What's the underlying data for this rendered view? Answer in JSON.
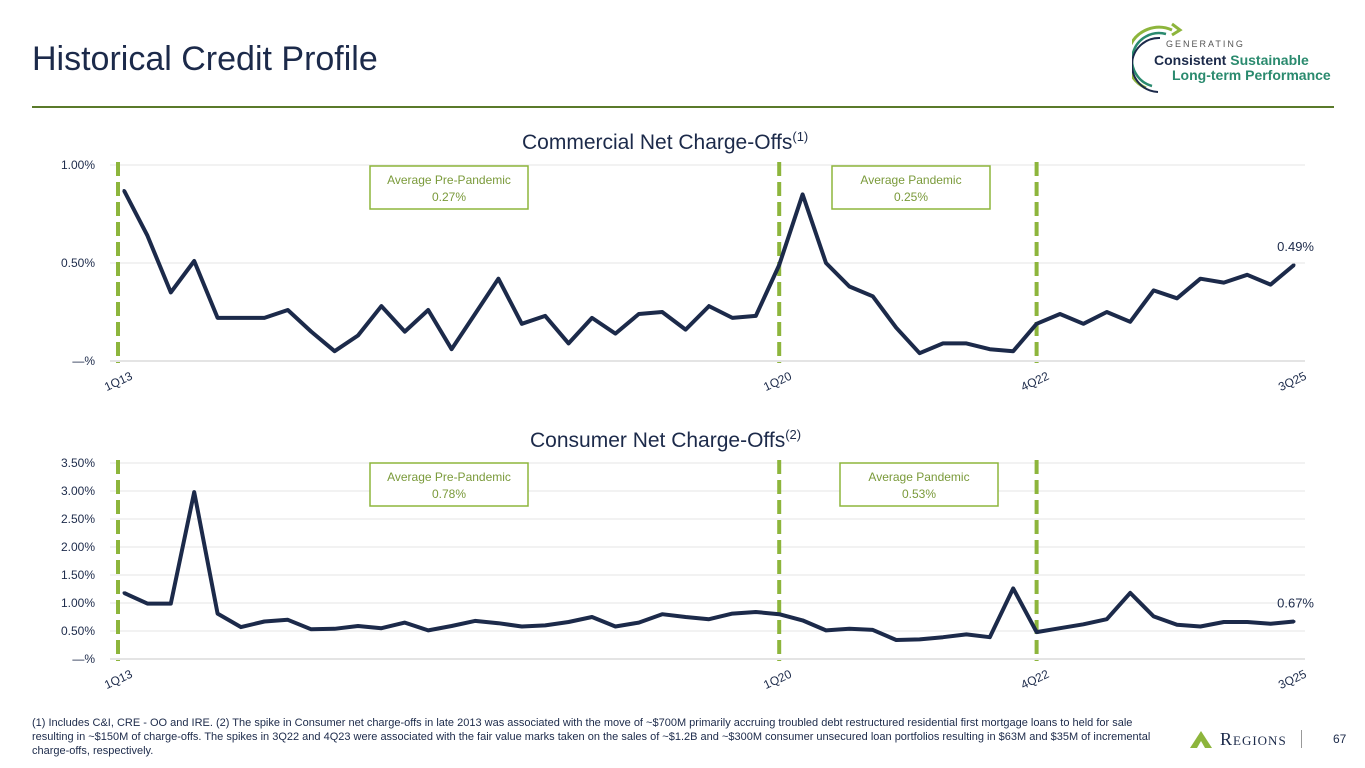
{
  "page": {
    "title": "Historical Credit Profile",
    "page_number": "67",
    "footnote": "(1) Includes C&I, CRE - OO and IRE.  (2) The spike in Consumer net charge-offs in late 2013 was associated with the move of ~$700M primarily accruing troubled debt restructured residential first mortgage loans to held for sale resulting in ~$150M of charge-offs. The spikes in 3Q22 and 4Q23 were associated with the fair value marks taken on the sales of ~$1.2B and ~$300M consumer unsecured loan portfolios resulting in $63M and $35M of incremental charge-offs, respectively."
  },
  "logo": {
    "line0": "GENERATING",
    "line1a": "Consistent",
    "line1b": "Sustainable",
    "line2": "Long-term Performance"
  },
  "brand": {
    "name": "Regions"
  },
  "colors": {
    "line": "#1c2a4a",
    "marker": "#8db53c",
    "grid": "#e6e6e6",
    "text": "#1c2a4a"
  },
  "chart_data": [
    {
      "type": "line",
      "title": "Commercial Net Charge-Offs",
      "title_sup": "(1)",
      "ylim": [
        0,
        1.0
      ],
      "y_ticks": [
        0,
        0.5,
        1.0
      ],
      "y_tick_labels": [
        "—%",
        "0.50%",
        "1.00%"
      ],
      "x_tick_labels": [
        {
          "index": 0,
          "label": "1Q13"
        },
        {
          "index": 28,
          "label": "1Q20"
        },
        {
          "index": 39,
          "label": "4Q22"
        },
        {
          "index": 50,
          "label": "3Q25"
        }
      ],
      "values": [
        0.87,
        0.64,
        0.35,
        0.51,
        0.22,
        0.22,
        0.22,
        0.26,
        0.15,
        0.05,
        0.13,
        0.28,
        0.15,
        0.26,
        0.06,
        0.24,
        0.42,
        0.19,
        0.23,
        0.09,
        0.22,
        0.14,
        0.24,
        0.25,
        0.16,
        0.28,
        0.22,
        0.23,
        0.49,
        0.85,
        0.5,
        0.38,
        0.33,
        0.17,
        0.04,
        0.09,
        0.09,
        0.06,
        0.05,
        0.19,
        0.24,
        0.19,
        0.25,
        0.2,
        0.36,
        0.32,
        0.42,
        0.4,
        0.44,
        0.39,
        0.49
      ],
      "vlines": [
        0,
        28,
        39
      ],
      "last_label": "0.49%",
      "annotations": [
        {
          "label": "Average Pre-Pandemic",
          "value": "0.27%"
        },
        {
          "label": "Average Pandemic",
          "value": "0.25%"
        }
      ]
    },
    {
      "type": "line",
      "title": "Consumer Net Charge-Offs",
      "title_sup": "(2)",
      "ylim": [
        0,
        3.5
      ],
      "y_ticks": [
        0,
        0.5,
        1.0,
        1.5,
        2.0,
        2.5,
        3.0,
        3.5
      ],
      "y_tick_labels": [
        "—%",
        "0.50%",
        "1.00%",
        "1.50%",
        "2.00%",
        "2.50%",
        "3.00%",
        "3.50%"
      ],
      "x_tick_labels": [
        {
          "index": 0,
          "label": "1Q13"
        },
        {
          "index": 28,
          "label": "1Q20"
        },
        {
          "index": 39,
          "label": "4Q22"
        },
        {
          "index": 50,
          "label": "3Q25"
        }
      ],
      "values": [
        1.18,
        0.99,
        0.99,
        2.98,
        0.81,
        0.57,
        0.67,
        0.7,
        0.53,
        0.54,
        0.59,
        0.55,
        0.65,
        0.51,
        0.59,
        0.68,
        0.64,
        0.58,
        0.6,
        0.66,
        0.75,
        0.58,
        0.65,
        0.8,
        0.75,
        0.71,
        0.81,
        0.84,
        0.8,
        0.69,
        0.51,
        0.54,
        0.52,
        0.34,
        0.35,
        0.39,
        0.44,
        0.39,
        1.26,
        0.48,
        0.55,
        0.62,
        0.71,
        1.18,
        0.76,
        0.61,
        0.58,
        0.66,
        0.66,
        0.63,
        0.67
      ],
      "vlines": [
        0,
        28,
        39
      ],
      "last_label": "0.67%",
      "annotations": [
        {
          "label": "Average Pre-Pandemic",
          "value": "0.78%"
        },
        {
          "label": "Average Pandemic",
          "value": "0.53%"
        }
      ]
    }
  ]
}
